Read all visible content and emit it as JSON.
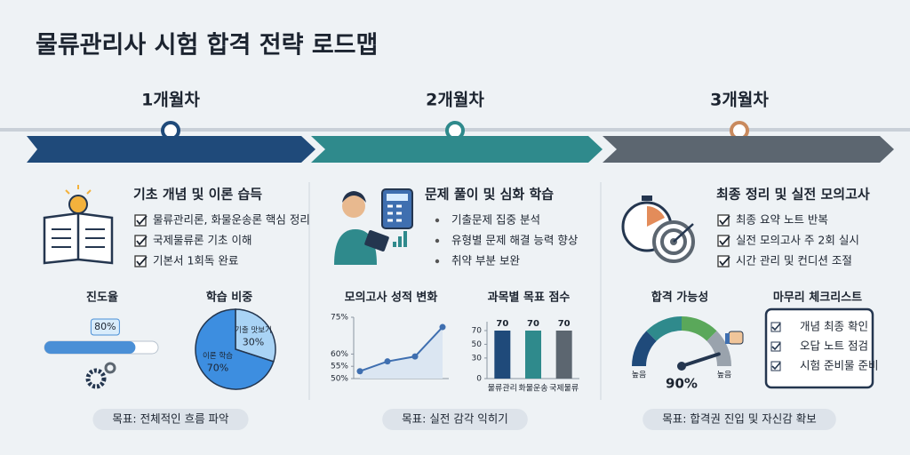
{
  "title": "물류관리사 시험 합격 전략 로드맵",
  "phases": [
    {
      "label": "1개월차",
      "color": "#1f4a7a",
      "heading": "기초 개념 및 이론 습득",
      "list_style": "check",
      "items": [
        "물류관리론, 화물운송론 핵심 정리",
        "국제물류론 기초 이해",
        "기본서 1회독 완료"
      ],
      "goal": "목표: 전체적인 흐름 파악"
    },
    {
      "label": "2개월차",
      "color": "#2f8a8c",
      "heading": "문제 풀이 및 심화 학습",
      "list_style": "bullet",
      "items": [
        "기출문제 집중 분석",
        "유형별 문제 해결 능력 향상",
        "취약 부분 보완"
      ],
      "goal": "목표: 실전 감각 익히기"
    },
    {
      "label": "3개월차",
      "color": "#5c6670",
      "heading": "최종 정리 및 실전 모의고사",
      "list_style": "check",
      "items": [
        "최종 요약 노트 반복",
        "실전 모의고사 주 2회 실시",
        "시간 관리 및 컨디션 조절"
      ],
      "goal": "목표: 합격권 진입 및 자신감 확보"
    }
  ],
  "chart_data": [
    {
      "type": "progress",
      "title": "진도율",
      "values": [
        80
      ],
      "value_labels": [
        "80%"
      ],
      "xlim": [
        0,
        100
      ],
      "color": "#4a8fd6"
    },
    {
      "type": "pie",
      "title": "학습 비중",
      "categories": [
        "기출 맛보기",
        "이론 학습"
      ],
      "values": [
        30,
        70
      ],
      "value_labels": [
        "30%",
        "70%"
      ],
      "colors": [
        "#a9d3f5",
        "#3d8ee0"
      ]
    },
    {
      "type": "line",
      "title": "모의고사 성적 변화",
      "values": [
        53,
        57,
        59,
        71
      ],
      "ylim": [
        50,
        75
      ],
      "yticks": [
        {
          "value": 50,
          "label": "50%"
        },
        {
          "value": 55,
          "label": "55%"
        },
        {
          "value": 60,
          "label": "60%"
        },
        {
          "value": 75,
          "label": "75%"
        }
      ],
      "color": "#3f6fb0"
    },
    {
      "type": "bar",
      "title": "과목별 목표 점수",
      "categories": [
        "물류관리",
        "화물운송",
        "국제물류"
      ],
      "values": [
        70,
        70,
        70
      ],
      "ylim": [
        0,
        70
      ],
      "yticks": [
        0,
        30,
        50,
        70
      ],
      "colors": [
        "#1f4a7a",
        "#2f8a8c",
        "#5c6670"
      ]
    },
    {
      "type": "gauge",
      "title": "합격 가능성",
      "values": [
        90
      ],
      "value_labels": [
        "90%"
      ],
      "xlim": [
        0,
        100
      ],
      "min_label": "높음",
      "max_label": "높음"
    },
    {
      "type": "checklist",
      "title": "마무리 체크리스트",
      "items": [
        "개념 최종 확인",
        "오답 노트 점검",
        "시험 준비물 준비"
      ]
    }
  ]
}
